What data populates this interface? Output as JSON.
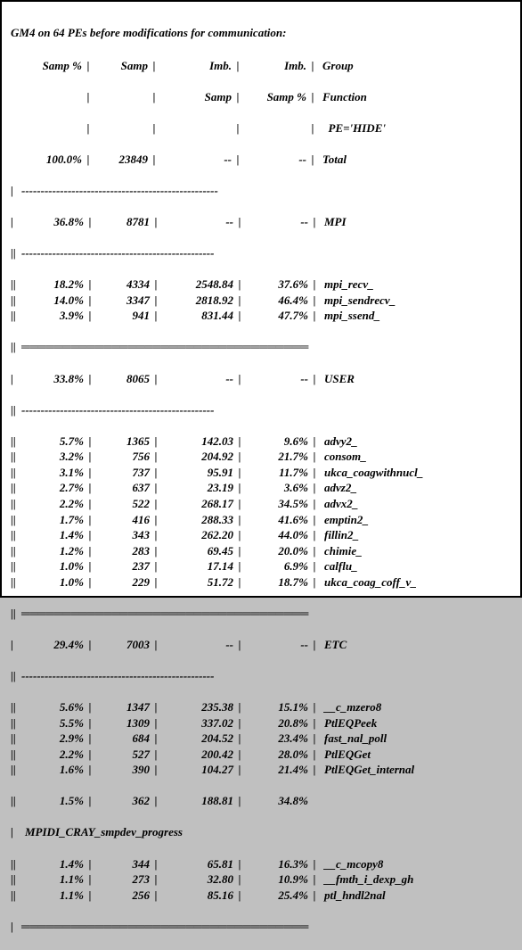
{
  "title": "GM4 on 64 PEs before modifications for communication:",
  "headers": {
    "samp_pct": "Samp %",
    "samp": "Samp",
    "imb": "Imb.",
    "imb_pct": "Imb.",
    "group": "Group",
    "samp2": "Samp",
    "samp_pct2": "Samp %",
    "function": "Function",
    "pe": "PE='HIDE'"
  },
  "total": {
    "pct": "100.0%",
    "samp": "23849",
    "imb": "--",
    "imbpct": "--",
    "label": "Total"
  },
  "mpi_header": {
    "pct": "36.8%",
    "samp": "8781",
    "imb": "--",
    "imbpct": "--",
    "label": "MPI"
  },
  "mpi_rows": [
    {
      "pct": "18.2%",
      "samp": "4334",
      "imb": "2548.84",
      "imbpct": "37.6%",
      "label": "mpi_recv_"
    },
    {
      "pct": "14.0%",
      "samp": "3347",
      "imb": "2818.92",
      "imbpct": "46.4%",
      "label": "mpi_sendrecv_"
    },
    {
      "pct": "3.9%",
      "samp": "941",
      "imb": "831.44",
      "imbpct": "47.7%",
      "label": "mpi_ssend_"
    }
  ],
  "user_header": {
    "pct": "33.8%",
    "samp": "8065",
    "imb": "--",
    "imbpct": "--",
    "label": "USER"
  },
  "user_rows": [
    {
      "pct": "5.7%",
      "samp": "1365",
      "imb": "142.03",
      "imbpct": "9.6%",
      "label": "advy2_"
    },
    {
      "pct": "3.2%",
      "samp": "756",
      "imb": "204.92",
      "imbpct": "21.7%",
      "label": "consom_"
    },
    {
      "pct": "3.1%",
      "samp": "737",
      "imb": "95.91",
      "imbpct": "11.7%",
      "label": "ukca_coagwithnucl_"
    },
    {
      "pct": "2.7%",
      "samp": "637",
      "imb": "23.19",
      "imbpct": "3.6%",
      "label": "advz2_"
    },
    {
      "pct": "2.2%",
      "samp": "522",
      "imb": "268.17",
      "imbpct": "34.5%",
      "label": "advx2_"
    },
    {
      "pct": "1.7%",
      "samp": "416",
      "imb": "288.33",
      "imbpct": "41.6%",
      "label": "emptin2_"
    },
    {
      "pct": "1.4%",
      "samp": "343",
      "imb": "262.20",
      "imbpct": "44.0%",
      "label": "fillin2_"
    },
    {
      "pct": "1.2%",
      "samp": "283",
      "imb": "69.45",
      "imbpct": "20.0%",
      "label": "chimie_"
    },
    {
      "pct": "1.0%",
      "samp": "237",
      "imb": "17.14",
      "imbpct": "6.9%",
      "label": "calflu_"
    },
    {
      "pct": "1.0%",
      "samp": "229",
      "imb": "51.72",
      "imbpct": "18.7%",
      "label": "ukca_coag_coff_v_"
    }
  ],
  "etc_header": {
    "pct": "29.4%",
    "samp": "7003",
    "imb": "--",
    "imbpct": "--",
    "label": "ETC"
  },
  "etc_rows": [
    {
      "pct": "5.6%",
      "samp": "1347",
      "imb": "235.38",
      "imbpct": "15.1%",
      "label": "__c_mzero8"
    },
    {
      "pct": "5.5%",
      "samp": "1309",
      "imb": "337.02",
      "imbpct": "20.8%",
      "label": "PtlEQPeek"
    },
    {
      "pct": "2.9%",
      "samp": "684",
      "imb": "204.52",
      "imbpct": "23.4%",
      "label": "fast_nal_poll"
    },
    {
      "pct": "2.2%",
      "samp": "527",
      "imb": "200.42",
      "imbpct": "28.0%",
      "label": "PtlEQGet"
    },
    {
      "pct": "1.6%",
      "samp": "390",
      "imb": "104.27",
      "imbpct": "21.4%",
      "label": "PtlEQGet_internal"
    }
  ],
  "wrapped_row": {
    "pct": "1.5%",
    "samp": "362",
    "imb": "188.81",
    "imbpct": "34.8%",
    "label": "MPIDI_CRAY_smpdev_progress"
  },
  "etc_rows2": [
    {
      "pct": "1.4%",
      "samp": "344",
      "imb": "65.81",
      "imbpct": "16.3%",
      "label": "__c_mcopy8"
    },
    {
      "pct": "1.1%",
      "samp": "273",
      "imb": "32.80",
      "imbpct": "10.9%",
      "label": "__fmth_i_dexp_gh"
    },
    {
      "pct": "1.1%",
      "samp": "256",
      "imb": "85.16",
      "imbpct": "25.4%",
      "label": "ptl_hndl2nal"
    }
  ],
  "dividers": {
    "dash": "---------------------------------------------------",
    "dash2": "--------------------------------------------------",
    "dbl": "═══════════════════════════════════"
  },
  "sep": "|"
}
